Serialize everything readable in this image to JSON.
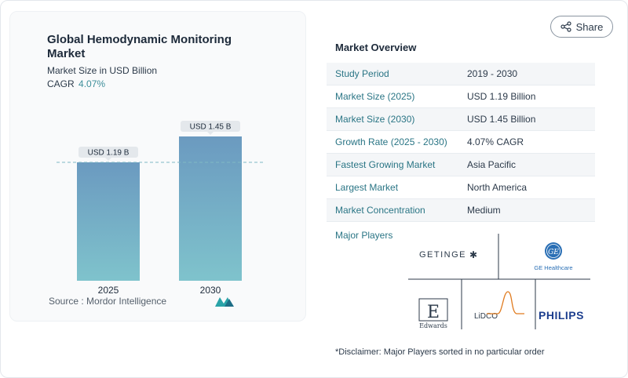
{
  "chart": {
    "title": "Global Hemodynamic Monitoring Market",
    "subtitle": "Market Size in USD Billion",
    "cagr_label": "CAGR",
    "cagr_value": "4.07%",
    "source": "Source :  Mordor Intelligence"
  },
  "chart_data": {
    "type": "bar",
    "categories": [
      "2025",
      "2030"
    ],
    "values": [
      1.19,
      1.45
    ],
    "data_labels": [
      "USD 1.19 B",
      "USD 1.45 B"
    ],
    "title": "Global Hemodynamic Monitoring Market",
    "ylabel": "Market Size in USD Billion",
    "ylim": [
      0,
      1.45
    ],
    "bar_color": "#6b9ac0",
    "bar_color_end": "#7fc3cc",
    "grid": false
  },
  "share": {
    "label": "Share"
  },
  "overview": {
    "title": "Market Overview",
    "rows": [
      {
        "label": "Study Period",
        "value": "2019 - 2030"
      },
      {
        "label": "Market Size (2025)",
        "value": "USD 1.19 Billion"
      },
      {
        "label": "Market Size (2030)",
        "value": "USD 1.45 Billion"
      },
      {
        "label": "Growth Rate (2025 - 2030)",
        "value": "4.07% CAGR"
      },
      {
        "label": "Fastest Growing Market",
        "value": "Asia Pacific"
      },
      {
        "label": "Largest Market",
        "value": "North America"
      },
      {
        "label": "Market Concentration",
        "value": "Medium"
      }
    ]
  },
  "major_players": {
    "title": "Major Players",
    "getinge": "GETINGE",
    "ge_monogram": "GE",
    "ge_name": "GE Healthcare",
    "edwards": "Edwards",
    "lidco": "LiDCO",
    "philips": "PHILIPS"
  },
  "disclaimer": "*Disclaimer: Major Players sorted in no particular order",
  "colors": {
    "accent": "#2a7585",
    "bar": "#6b9ac0",
    "bar_end": "#7fc3cc",
    "philips": "#1d3f8f"
  }
}
